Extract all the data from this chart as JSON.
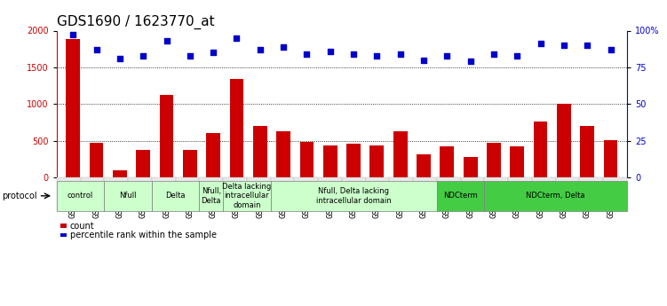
{
  "title": "GDS1690 / 1623770_at",
  "samples": [
    "GSM53393",
    "GSM53396",
    "GSM53403",
    "GSM53397",
    "GSM53399",
    "GSM53408",
    "GSM53390",
    "GSM53401",
    "GSM53406",
    "GSM53402",
    "GSM53388",
    "GSM53398",
    "GSM53392",
    "GSM53400",
    "GSM53405",
    "GSM53409",
    "GSM53410",
    "GSM53411",
    "GSM53395",
    "GSM53404",
    "GSM53389",
    "GSM53391",
    "GSM53394",
    "GSM53407"
  ],
  "counts": [
    1880,
    470,
    100,
    380,
    1120,
    370,
    610,
    1340,
    700,
    630,
    490,
    440,
    460,
    440,
    630,
    310,
    420,
    280,
    470,
    420,
    760,
    1000,
    700,
    510
  ],
  "percentiles": [
    97,
    87,
    81,
    83,
    93,
    83,
    85,
    95,
    87,
    89,
    84,
    86,
    84,
    83,
    84,
    80,
    83,
    79,
    84,
    83,
    91,
    90,
    90,
    87
  ],
  "bar_color": "#cc0000",
  "dot_color": "#0000cc",
  "ylim_left": [
    0,
    2000
  ],
  "ylim_right": [
    0,
    100
  ],
  "yticks_left": [
    0,
    500,
    1000,
    1500,
    2000
  ],
  "yticks_right": [
    0,
    25,
    50,
    75,
    100
  ],
  "ytick_labels_right": [
    "0",
    "25",
    "50",
    "75",
    "100%"
  ],
  "grid_values": [
    500,
    1000,
    1500
  ],
  "protocol_groups": [
    {
      "label": "control",
      "start": 0,
      "end": 1,
      "color": "#ccffcc"
    },
    {
      "label": "Nfull",
      "start": 2,
      "end": 3,
      "color": "#ccffcc"
    },
    {
      "label": "Delta",
      "start": 4,
      "end": 5,
      "color": "#ccffcc"
    },
    {
      "label": "Nfull,\nDelta",
      "start": 6,
      "end": 6,
      "color": "#ccffcc"
    },
    {
      "label": "Delta lacking\nintracellular\ndomain",
      "start": 7,
      "end": 8,
      "color": "#ccffcc"
    },
    {
      "label": "Nfull, Delta lacking\nintracellular domain",
      "start": 9,
      "end": 15,
      "color": "#ccffcc"
    },
    {
      "label": "NDCterm",
      "start": 16,
      "end": 17,
      "color": "#44cc44"
    },
    {
      "label": "NDCterm, Delta",
      "start": 18,
      "end": 23,
      "color": "#44cc44"
    }
  ],
  "protocol_label": "protocol",
  "legend_count_label": "count",
  "legend_pct_label": "percentile rank within the sample",
  "bar_width": 0.6,
  "title_fontsize": 11,
  "tick_fontsize": 7,
  "prot_fontsize": 6,
  "legend_fontsize": 7
}
